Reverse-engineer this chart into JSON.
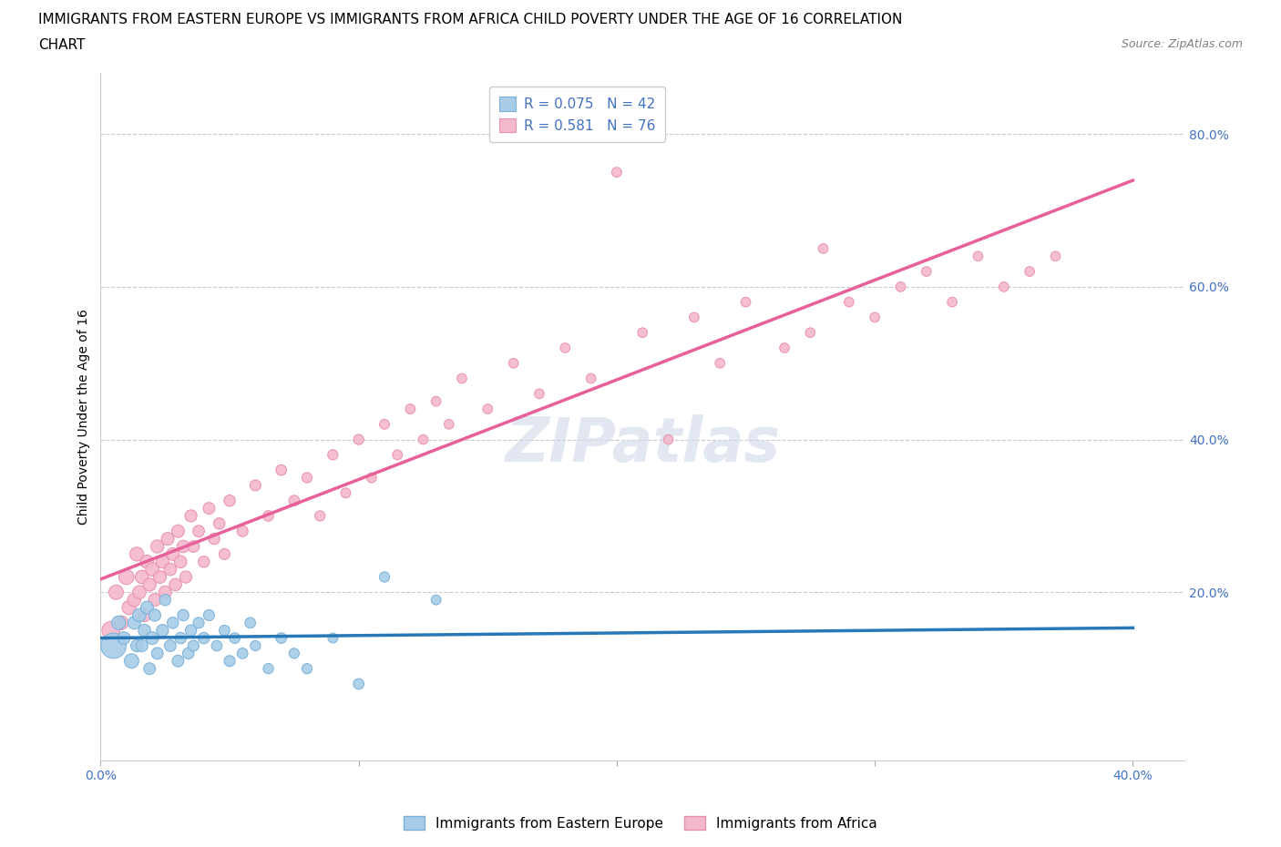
{
  "title_line1": "IMMIGRANTS FROM EASTERN EUROPE VS IMMIGRANTS FROM AFRICA CHILD POVERTY UNDER THE AGE OF 16 CORRELATION",
  "title_line2": "CHART",
  "source": "Source: ZipAtlas.com",
  "ylabel": "Child Poverty Under the Age of 16",
  "xlim": [
    0.0,
    0.42
  ],
  "ylim": [
    -0.02,
    0.88
  ],
  "yticks": [
    0.2,
    0.4,
    0.6,
    0.8
  ],
  "ytick_labels": [
    "20.0%",
    "40.0%",
    "60.0%",
    "80.0%"
  ],
  "xticks": [
    0.0,
    0.1,
    0.2,
    0.3,
    0.4
  ],
  "xtick_labels_show": [
    "0.0%",
    "",
    "",
    "",
    "40.0%"
  ],
  "grid_color": "#cccccc",
  "watermark": "ZIPatlas",
  "legend_R_eastern": "R = 0.075",
  "legend_N_eastern": "N = 42",
  "legend_R_africa": "R = 0.581",
  "legend_N_africa": "N = 76",
  "color_eastern": "#a8cce8",
  "color_africa": "#f4b8cc",
  "color_eastern_line": "#2878b8",
  "color_africa_line": "#e8609a",
  "color_eastern_edge": "#7ab0d8",
  "color_africa_edge": "#e890b0",
  "eastern_x": [
    0.005,
    0.007,
    0.009,
    0.012,
    0.013,
    0.014,
    0.015,
    0.016,
    0.017,
    0.018,
    0.019,
    0.02,
    0.021,
    0.022,
    0.024,
    0.025,
    0.027,
    0.028,
    0.03,
    0.031,
    0.032,
    0.034,
    0.035,
    0.036,
    0.038,
    0.04,
    0.042,
    0.045,
    0.048,
    0.05,
    0.052,
    0.055,
    0.058,
    0.06,
    0.065,
    0.07,
    0.075,
    0.08,
    0.09,
    0.1,
    0.11,
    0.13
  ],
  "eastern_y": [
    0.13,
    0.16,
    0.14,
    0.11,
    0.16,
    0.13,
    0.17,
    0.13,
    0.15,
    0.18,
    0.1,
    0.14,
    0.17,
    0.12,
    0.15,
    0.19,
    0.13,
    0.16,
    0.11,
    0.14,
    0.17,
    0.12,
    0.15,
    0.13,
    0.16,
    0.14,
    0.17,
    0.13,
    0.15,
    0.11,
    0.14,
    0.12,
    0.16,
    0.13,
    0.1,
    0.14,
    0.12,
    0.1,
    0.14,
    0.08,
    0.22,
    0.19
  ],
  "eastern_size": [
    400,
    120,
    100,
    130,
    100,
    90,
    110,
    90,
    95,
    100,
    85,
    100,
    90,
    85,
    90,
    80,
    85,
    80,
    85,
    80,
    80,
    80,
    80,
    75,
    75,
    80,
    75,
    70,
    70,
    75,
    70,
    70,
    70,
    65,
    65,
    70,
    65,
    65,
    60,
    70,
    65,
    60
  ],
  "africa_x": [
    0.004,
    0.006,
    0.008,
    0.01,
    0.011,
    0.013,
    0.014,
    0.015,
    0.016,
    0.017,
    0.018,
    0.019,
    0.02,
    0.021,
    0.022,
    0.023,
    0.024,
    0.025,
    0.026,
    0.027,
    0.028,
    0.029,
    0.03,
    0.031,
    0.032,
    0.033,
    0.035,
    0.036,
    0.038,
    0.04,
    0.042,
    0.044,
    0.046,
    0.048,
    0.05,
    0.055,
    0.06,
    0.065,
    0.07,
    0.075,
    0.08,
    0.085,
    0.09,
    0.095,
    0.1,
    0.105,
    0.11,
    0.115,
    0.12,
    0.125,
    0.13,
    0.135,
    0.14,
    0.15,
    0.16,
    0.17,
    0.18,
    0.19,
    0.2,
    0.21,
    0.22,
    0.23,
    0.24,
    0.25,
    0.265,
    0.275,
    0.28,
    0.29,
    0.3,
    0.31,
    0.32,
    0.33,
    0.34,
    0.35,
    0.36,
    0.37
  ],
  "africa_y": [
    0.15,
    0.2,
    0.16,
    0.22,
    0.18,
    0.19,
    0.25,
    0.2,
    0.22,
    0.17,
    0.24,
    0.21,
    0.23,
    0.19,
    0.26,
    0.22,
    0.24,
    0.2,
    0.27,
    0.23,
    0.25,
    0.21,
    0.28,
    0.24,
    0.26,
    0.22,
    0.3,
    0.26,
    0.28,
    0.24,
    0.31,
    0.27,
    0.29,
    0.25,
    0.32,
    0.28,
    0.34,
    0.3,
    0.36,
    0.32,
    0.35,
    0.3,
    0.38,
    0.33,
    0.4,
    0.35,
    0.42,
    0.38,
    0.44,
    0.4,
    0.45,
    0.42,
    0.48,
    0.44,
    0.5,
    0.46,
    0.52,
    0.48,
    0.75,
    0.54,
    0.4,
    0.56,
    0.5,
    0.58,
    0.52,
    0.54,
    0.65,
    0.58,
    0.56,
    0.6,
    0.62,
    0.58,
    0.64,
    0.6,
    0.62,
    0.64
  ],
  "africa_size": [
    200,
    130,
    120,
    140,
    120,
    110,
    120,
    110,
    110,
    105,
    110,
    105,
    110,
    100,
    105,
    100,
    105,
    100,
    100,
    95,
    100,
    95,
    100,
    95,
    95,
    90,
    90,
    85,
    85,
    80,
    85,
    80,
    80,
    75,
    80,
    75,
    75,
    70,
    70,
    70,
    65,
    65,
    65,
    60,
    65,
    60,
    60,
    60,
    60,
    58,
    58,
    58,
    58,
    58,
    58,
    58,
    58,
    58,
    60,
    58,
    58,
    58,
    58,
    58,
    58,
    58,
    58,
    58,
    58,
    58,
    58,
    58,
    58,
    58,
    58,
    58
  ],
  "title_fontsize": 11,
  "axis_label_fontsize": 10,
  "tick_fontsize": 10,
  "legend_fontsize": 11,
  "watermark_fontsize": 48,
  "background_color": "#ffffff"
}
